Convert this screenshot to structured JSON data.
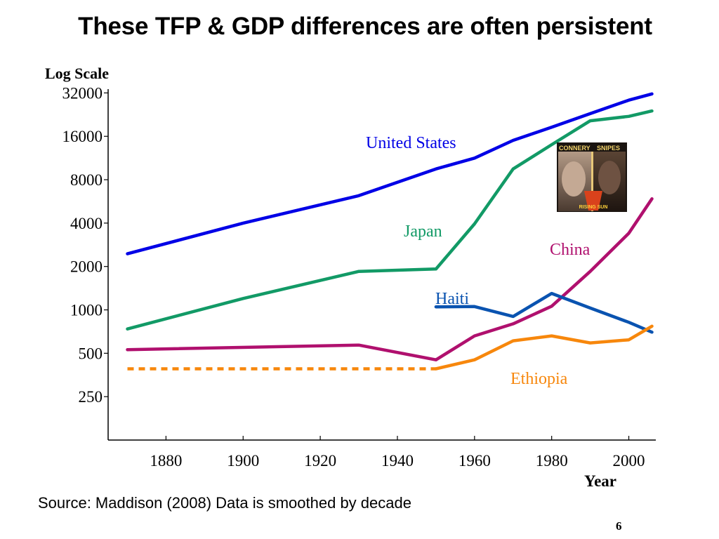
{
  "slide": {
    "title": "These TFP & GDP differences are often persistent",
    "source": "Source: Maddison (2008) Data is smoothed by decade",
    "page_number": "6"
  },
  "poster": {
    "caption_left": "CONNERY",
    "caption_right": "SNIPES",
    "caption_bottom": "RISING SUN"
  },
  "colors": {
    "United States": "#0000e6",
    "Japan": "#129a66",
    "China": "#b0106e",
    "Haiti": "#0a53b0",
    "Ethiopia": "#f7870c"
  },
  "chart_data": {
    "type": "line",
    "ylabel": "Log Scale",
    "xlabel": "Year",
    "yscale": "log2",
    "xlim": [
      1865,
      2007
    ],
    "ylim": [
      125,
      34000
    ],
    "xticks": [
      1880,
      1900,
      1920,
      1940,
      1960,
      1980,
      2000
    ],
    "yticks": [
      250,
      500,
      1000,
      2000,
      4000,
      8000,
      16000,
      32000
    ],
    "grid": false,
    "series": [
      {
        "name": "United States",
        "x": [
          1870,
          1900,
          1930,
          1950,
          1960,
          1970,
          1980,
          1990,
          2000,
          2006
        ],
        "y": [
          2450,
          4000,
          6200,
          9500,
          11300,
          15000,
          18500,
          23000,
          28500,
          31500
        ]
      },
      {
        "name": "Japan",
        "x": [
          1870,
          1900,
          1930,
          1950,
          1960,
          1970,
          1980,
          1990,
          2000,
          2006
        ],
        "y": [
          737,
          1200,
          1850,
          1920,
          3950,
          9500,
          14000,
          20500,
          22000,
          24000
        ]
      },
      {
        "name": "China",
        "x": [
          1870,
          1930,
          1950,
          1960,
          1970,
          1980,
          1990,
          2000,
          2006
        ],
        "y": [
          530,
          570,
          450,
          660,
          800,
          1060,
          1850,
          3400,
          5900
        ]
      },
      {
        "name": "Haiti",
        "x": [
          1950,
          1960,
          1970,
          1980,
          1990,
          2000,
          2006
        ],
        "y": [
          1050,
          1055,
          900,
          1300,
          1030,
          820,
          700
        ]
      },
      {
        "name": "Ethiopia",
        "x": [
          1950,
          1960,
          1970,
          1980,
          1990,
          2000,
          2006
        ],
        "y": [
          390,
          450,
          610,
          660,
          590,
          620,
          770
        ]
      },
      {
        "name": "Ethiopia (estimate)",
        "style": "dashed",
        "x": [
          1870,
          1950
        ],
        "y": [
          390,
          390
        ]
      }
    ]
  }
}
